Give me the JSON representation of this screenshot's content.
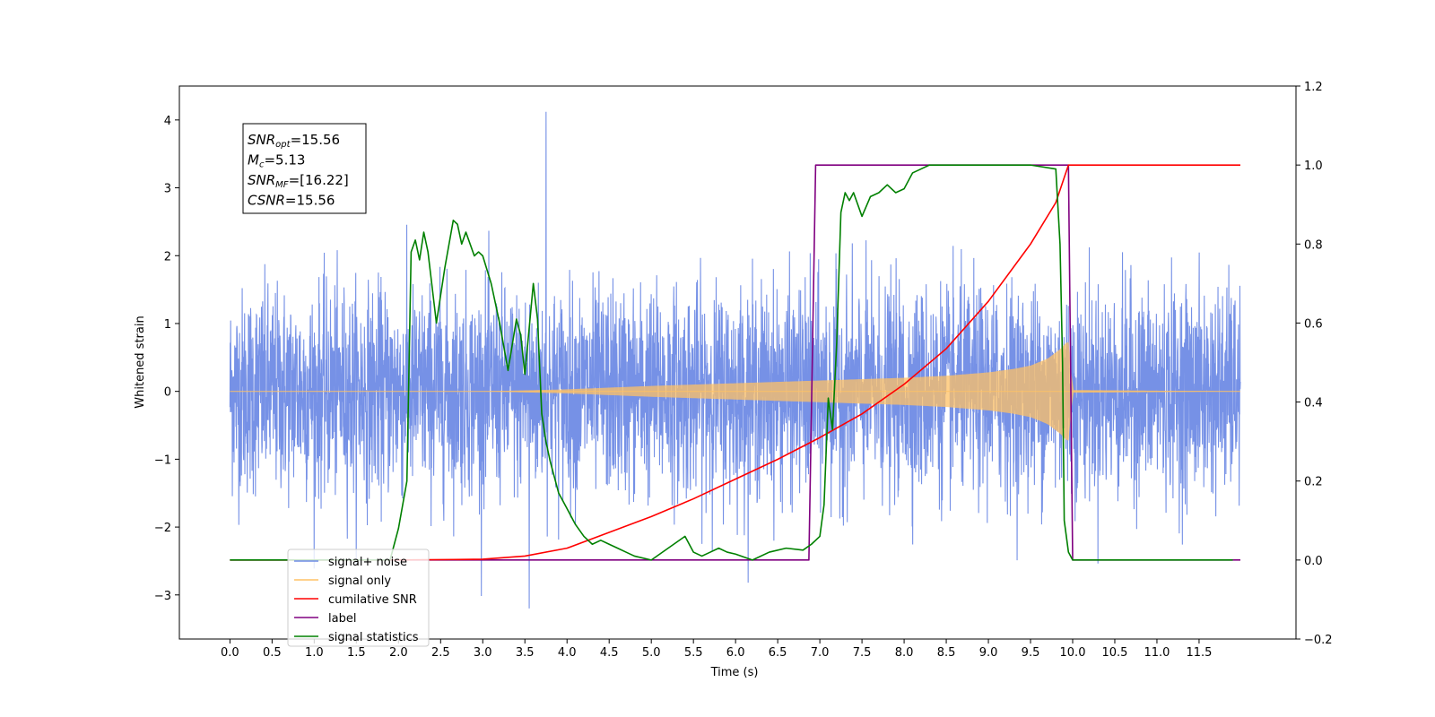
{
  "chart_data": {
    "type": "line",
    "xlabel": "Time (s)",
    "ylabel": "Whitened strain",
    "xlim": [
      -0.6,
      12.65
    ],
    "ylim": [
      -3.65,
      4.5
    ],
    "y2lim": [
      -0.2,
      1.2
    ],
    "xticks": [
      0.0,
      0.5,
      1.0,
      1.5,
      2.0,
      2.5,
      3.0,
      3.5,
      4.0,
      4.5,
      5.0,
      5.5,
      6.0,
      6.5,
      7.0,
      7.5,
      8.0,
      8.5,
      9.0,
      9.5,
      10.0,
      10.5,
      11.0,
      11.5
    ],
    "xtick_labels": [
      "0.0",
      "0.5",
      "1.0",
      "1.5",
      "2.0",
      "2.5",
      "3.0",
      "3.5",
      "4.0",
      "4.5",
      "5.0",
      "5.5",
      "6.0",
      "6.5",
      "7.0",
      "7.5",
      "8.0",
      "8.5",
      "9.0",
      "9.5",
      "10.0",
      "10.5",
      "11.0",
      "11.5"
    ],
    "yticks": [
      -3,
      -2,
      -1,
      0,
      1,
      2,
      3,
      4
    ],
    "ytick_labels": [
      "−3",
      "−2",
      "−1",
      "0",
      "1",
      "2",
      "3",
      "4"
    ],
    "y2ticks": [
      -0.2,
      0.0,
      0.2,
      0.4,
      0.6,
      0.8,
      1.0,
      1.2
    ],
    "y2tick_labels": [
      "−0.2",
      "0.0",
      "0.2",
      "0.4",
      "0.6",
      "0.8",
      "1.0",
      "1.2"
    ],
    "annotation": {
      "lines": [
        {
          "base": "SNR",
          "sub": "opt",
          "rest": "=15.56"
        },
        {
          "base": "M",
          "sub": "c",
          "rest": "=5.13"
        },
        {
          "base": "SNR",
          "sub": "MF",
          "rest": "=[16.22]"
        },
        {
          "base": "CSNR",
          "sub": "",
          "rest": "=15.56"
        }
      ]
    },
    "legend": {
      "placement": "lower-left",
      "entries": [
        {
          "name": "signal+ noise",
          "color": "#6f8be5"
        },
        {
          "name": "signal only",
          "color": "#ffc265"
        },
        {
          "name": "cumilative SNR",
          "color": "#ff0000"
        },
        {
          "name": "label",
          "color": "#800080"
        },
        {
          "name": "signal statistics",
          "color": "#008000"
        }
      ]
    },
    "series": [
      {
        "name": "signal+ noise",
        "axis": "left",
        "color": "#6f8be5",
        "description_values": {
          "t_start": 0.0,
          "t_end": 11.99,
          "typical_range": [
            -2.0,
            2.0
          ],
          "max": 4.12,
          "max_at": 3.75,
          "min": -3.3,
          "min_at": 3.55
        }
      },
      {
        "name": "signal only",
        "axis": "left",
        "color": "#ffc265",
        "envelope": {
          "t": [
            0.0,
            3.0,
            4.0,
            5.0,
            6.0,
            7.0,
            8.0,
            8.5,
            9.0,
            9.3,
            9.5,
            9.7,
            9.85,
            9.95,
            10.0,
            11.99
          ],
          "amp": [
            0.0,
            0.0,
            0.03,
            0.08,
            0.12,
            0.16,
            0.2,
            0.23,
            0.28,
            0.33,
            0.38,
            0.48,
            0.62,
            0.75,
            0.02,
            0.0
          ]
        }
      },
      {
        "name": "cumilative SNR",
        "axis": "right",
        "color": "#ff0000",
        "t": [
          2.0,
          3.0,
          3.5,
          4.0,
          4.5,
          5.0,
          5.5,
          6.0,
          6.5,
          7.0,
          7.5,
          8.0,
          8.5,
          9.0,
          9.5,
          9.8,
          9.95,
          10.0,
          11.99
        ],
        "values": [
          0.0,
          0.002,
          0.01,
          0.03,
          0.07,
          0.11,
          0.155,
          0.205,
          0.255,
          0.31,
          0.37,
          0.445,
          0.535,
          0.655,
          0.8,
          0.905,
          1.0,
          1.0,
          1.0
        ]
      },
      {
        "name": "label",
        "axis": "right",
        "color": "#800080",
        "t": [
          0.0,
          6.87,
          6.95,
          9.95,
          10.0,
          11.99
        ],
        "values": [
          0.0,
          0.0,
          1.0,
          1.0,
          0.0,
          0.0
        ]
      },
      {
        "name": "signal statistics",
        "axis": "right",
        "color": "#008000",
        "t": [
          0.0,
          1.9,
          2.0,
          2.1,
          2.15,
          2.2,
          2.25,
          2.3,
          2.35,
          2.45,
          2.55,
          2.6,
          2.65,
          2.7,
          2.75,
          2.8,
          2.9,
          2.95,
          3.0,
          3.1,
          3.2,
          3.3,
          3.4,
          3.45,
          3.5,
          3.6,
          3.65,
          3.7,
          3.75,
          3.8,
          3.9,
          4.0,
          4.1,
          4.2,
          4.3,
          4.4,
          4.5,
          4.6,
          4.7,
          4.8,
          5.0,
          5.2,
          5.4,
          5.5,
          5.6,
          5.7,
          5.8,
          5.9,
          6.0,
          6.2,
          6.4,
          6.6,
          6.8,
          6.9,
          7.0,
          7.05,
          7.1,
          7.15,
          7.2,
          7.25,
          7.3,
          7.35,
          7.4,
          7.5,
          7.6,
          7.7,
          7.8,
          7.9,
          8.0,
          8.1,
          8.2,
          8.3,
          8.4,
          8.5,
          9.0,
          9.5,
          9.8,
          9.85,
          9.88,
          9.9,
          9.95,
          10.0,
          11.9
        ],
        "values": [
          0.0,
          0.0,
          0.08,
          0.2,
          0.78,
          0.81,
          0.76,
          0.83,
          0.78,
          0.6,
          0.74,
          0.8,
          0.86,
          0.85,
          0.8,
          0.83,
          0.77,
          0.78,
          0.77,
          0.7,
          0.6,
          0.48,
          0.61,
          0.57,
          0.47,
          0.7,
          0.61,
          0.37,
          0.3,
          0.25,
          0.17,
          0.13,
          0.09,
          0.06,
          0.04,
          0.05,
          0.04,
          0.03,
          0.02,
          0.01,
          0.0,
          0.03,
          0.06,
          0.02,
          0.01,
          0.02,
          0.03,
          0.02,
          0.015,
          0.0,
          0.02,
          0.03,
          0.025,
          0.04,
          0.06,
          0.14,
          0.41,
          0.33,
          0.55,
          0.88,
          0.93,
          0.91,
          0.93,
          0.87,
          0.92,
          0.93,
          0.95,
          0.93,
          0.94,
          0.98,
          0.99,
          1.0,
          1.0,
          1.0,
          1.0,
          1.0,
          0.99,
          0.8,
          0.5,
          0.1,
          0.02,
          0.0,
          0.0
        ]
      }
    ]
  }
}
